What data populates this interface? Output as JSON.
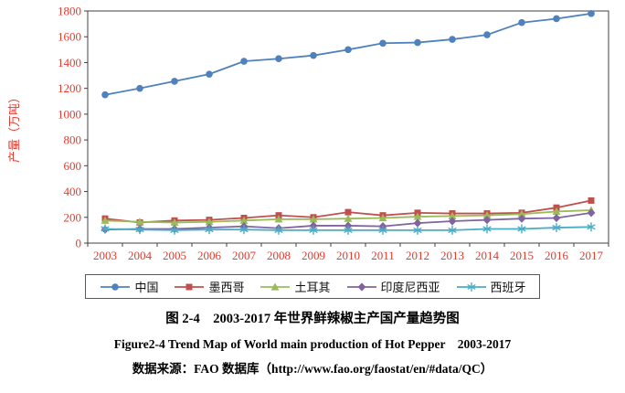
{
  "figure": {
    "caption_cn": "图 2-4　2003-2017 年世界鲜辣椒主产国产量趋势图",
    "caption_en": "Figure2-4 Trend Map of World main production of Hot Pepper　2003-2017",
    "source": "数据来源：FAO 数据库（http://www.fao.org/faostat/en/#data/QC）"
  },
  "chart_data": {
    "type": "line",
    "title": "",
    "xlabel": "",
    "ylabel": "产量（万吨）",
    "ylim": [
      0,
      1800
    ],
    "ytick_step": 200,
    "grid": false,
    "legend_position": "bottom",
    "label_color": "#e23b2f",
    "axis_color": "#404040",
    "x": [
      2003,
      2004,
      2005,
      2006,
      2007,
      2008,
      2009,
      2010,
      2011,
      2012,
      2013,
      2014,
      2015,
      2016,
      2017
    ],
    "series": [
      {
        "name": "中国",
        "color": "#4F81BD",
        "marker": "circle",
        "values": [
          1150,
          1200,
          1255,
          1310,
          1410,
          1430,
          1455,
          1500,
          1550,
          1555,
          1580,
          1615,
          1710,
          1740,
          1780
        ]
      },
      {
        "name": "墨西哥",
        "color": "#C0504D",
        "marker": "square",
        "values": [
          190,
          160,
          175,
          180,
          195,
          215,
          200,
          240,
          215,
          235,
          230,
          230,
          235,
          275,
          330
        ]
      },
      {
        "name": "土耳其",
        "color": "#9BBB59",
        "marker": "triangle",
        "values": [
          175,
          165,
          160,
          165,
          175,
          185,
          185,
          190,
          195,
          205,
          210,
          215,
          225,
          245,
          255
        ]
      },
      {
        "name": "印度尼西亚",
        "color": "#8064A2",
        "marker": "diamond",
        "values": [
          105,
          110,
          110,
          120,
          130,
          115,
          135,
          135,
          130,
          155,
          170,
          180,
          190,
          195,
          235
        ]
      },
      {
        "name": "西班牙",
        "color": "#4BACC6",
        "marker": "asterisk",
        "values": [
          110,
          105,
          100,
          105,
          105,
          100,
          100,
          100,
          100,
          100,
          100,
          110,
          110,
          120,
          125
        ]
      }
    ]
  }
}
